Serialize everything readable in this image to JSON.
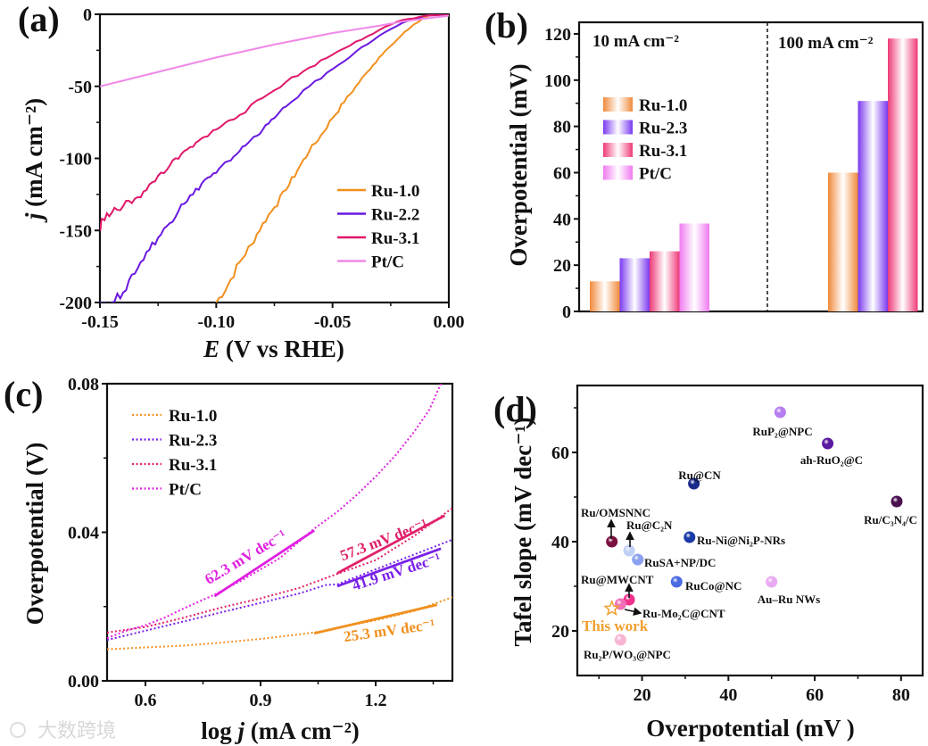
{
  "watermark": "大数跨境",
  "chart_data": [
    {
      "panel": "(a)",
      "type": "line",
      "xlabel_var": "E",
      "xlabel": " (V vs RHE)",
      "ylabel_var": "j",
      "ylabel": " (mA cm⁻²)",
      "xlim": [
        -0.15,
        0.0
      ],
      "ylim": [
        -200,
        0
      ],
      "xticks": [
        -0.15,
        -0.1,
        -0.05,
        0.0
      ],
      "xtick_labels": [
        "-0.15",
        "-0.10",
        "-0.05",
        "0.00"
      ],
      "yticks": [
        0,
        -50,
        -100,
        -150,
        -200
      ],
      "ytick_labels": [
        "0",
        "-50",
        "-100",
        "-150",
        "-200"
      ],
      "legend_position": "bottom-right",
      "series": [
        {
          "name": "Ru-1.0",
          "color": "#f0901e",
          "points": [
            [
              -0.1,
              -200
            ],
            [
              -0.095,
              -188
            ],
            [
              -0.09,
              -172
            ],
            [
              -0.085,
              -160
            ],
            [
              -0.08,
              -145
            ],
            [
              -0.075,
              -134
            ],
            [
              -0.07,
              -122
            ],
            [
              -0.065,
              -108
            ],
            [
              -0.06,
              -95
            ],
            [
              -0.055,
              -84
            ],
            [
              -0.05,
              -72
            ],
            [
              -0.045,
              -61
            ],
            [
              -0.04,
              -50
            ],
            [
              -0.035,
              -40
            ],
            [
              -0.03,
              -30
            ],
            [
              -0.025,
              -22
            ],
            [
              -0.02,
              -14
            ],
            [
              -0.015,
              -7
            ],
            [
              -0.008,
              0
            ],
            [
              0,
              0
            ]
          ]
        },
        {
          "name": "Ru-2.2",
          "color": "#6a18e0",
          "points": [
            [
              -0.15,
              -200
            ],
            [
              -0.145,
              -200
            ],
            [
              -0.14,
              -193
            ],
            [
              -0.135,
              -180
            ],
            [
              -0.13,
              -165
            ],
            [
              -0.125,
              -155
            ],
            [
              -0.12,
              -145
            ],
            [
              -0.115,
              -132
            ],
            [
              -0.11,
              -125
            ],
            [
              -0.105,
              -115
            ],
            [
              -0.1,
              -110
            ],
            [
              -0.095,
              -102
            ],
            [
              -0.09,
              -95
            ],
            [
              -0.085,
              -87
            ],
            [
              -0.08,
              -80
            ],
            [
              -0.075,
              -72
            ],
            [
              -0.07,
              -64
            ],
            [
              -0.06,
              -50
            ],
            [
              -0.05,
              -38
            ],
            [
              -0.04,
              -26
            ],
            [
              -0.03,
              -15
            ],
            [
              -0.02,
              -6
            ],
            [
              -0.01,
              -1
            ],
            [
              0,
              0
            ]
          ]
        },
        {
          "name": "Ru-3.1",
          "color": "#e0186a",
          "points": [
            [
              -0.15,
              -150
            ],
            [
              -0.149,
              -142
            ],
            [
              -0.145,
              -138
            ],
            [
              -0.14,
              -133
            ],
            [
              -0.135,
              -128
            ],
            [
              -0.13,
              -122
            ],
            [
              -0.125,
              -112
            ],
            [
              -0.12,
              -105
            ],
            [
              -0.115,
              -97
            ],
            [
              -0.11,
              -92
            ],
            [
              -0.105,
              -85
            ],
            [
              -0.1,
              -80
            ],
            [
              -0.095,
              -74
            ],
            [
              -0.09,
              -70
            ],
            [
              -0.08,
              -58
            ],
            [
              -0.07,
              -47
            ],
            [
              -0.06,
              -37
            ],
            [
              -0.05,
              -28
            ],
            [
              -0.04,
              -19
            ],
            [
              -0.03,
              -11
            ],
            [
              -0.02,
              -4
            ],
            [
              -0.01,
              -1
            ],
            [
              0,
              0
            ]
          ]
        },
        {
          "name": "Pt/C",
          "color": "#f088e8",
          "points": [
            [
              -0.15,
              -50
            ],
            [
              -0.125,
              -40
            ],
            [
              -0.1,
              -30
            ],
            [
              -0.075,
              -21
            ],
            [
              -0.05,
              -13
            ],
            [
              -0.03,
              -8
            ],
            [
              -0.02,
              -5
            ],
            [
              -0.01,
              -3
            ],
            [
              0,
              -1
            ]
          ]
        }
      ]
    },
    {
      "panel": "(b)",
      "type": "bar",
      "ylabel": "Overpotential (mV)",
      "ylim": [
        0,
        125
      ],
      "yticks": [
        0,
        20,
        40,
        60,
        80,
        100,
        120
      ],
      "ytick_labels": [
        "0",
        "20",
        "40",
        "60",
        "80",
        "100",
        "120"
      ],
      "legend_position": "upper-left",
      "categories": [
        "10 mA cm⁻²",
        "100 mA cm⁻²"
      ],
      "series": [
        {
          "name": "Ru-1.0",
          "color": "#f08a3a",
          "values": [
            13,
            60
          ]
        },
        {
          "name": "Ru-2.3",
          "color": "#7a3af0",
          "values": [
            23,
            91
          ]
        },
        {
          "name": "Ru-3.1",
          "color": "#ee3a78",
          "values": [
            26,
            118
          ]
        },
        {
          "name": "Pt/C",
          "color": "#f07af0",
          "values": [
            38,
            null
          ]
        }
      ]
    },
    {
      "panel": "(c)",
      "type": "line",
      "xlabel_pre": "log ",
      "xlabel_var": "j",
      "xlabel": " (mA cm⁻²)",
      "ylabel": "Overpotential (V)",
      "xlim": [
        0.5,
        1.4
      ],
      "ylim": [
        0,
        0.08
      ],
      "xticks": [
        0.6,
        0.9,
        1.2
      ],
      "xtick_labels": [
        "0.6",
        "0.9",
        "1.2"
      ],
      "yticks": [
        0,
        0.04,
        0.08
      ],
      "ytick_labels": [
        "0.00",
        "0.04",
        "0.08"
      ],
      "legend_position": "upper-left",
      "series": [
        {
          "name": "Ru-1.0",
          "color": "#f0901e",
          "tafel_slope": "25.3 mV dec⁻¹",
          "points": [
            [
              0.5,
              0.0085
            ],
            [
              0.6,
              0.009
            ],
            [
              0.7,
              0.0095
            ],
            [
              0.8,
              0.0103
            ],
            [
              0.9,
              0.0113
            ],
            [
              1.0,
              0.0125
            ],
            [
              1.05,
              0.0132
            ],
            [
              1.1,
              0.0143
            ],
            [
              1.2,
              0.0163
            ],
            [
              1.3,
              0.0188
            ],
            [
              1.4,
              0.0225
            ]
          ],
          "fit": [
            [
              1.04,
              0.0128
            ],
            [
              1.36,
              0.0205
            ]
          ]
        },
        {
          "name": "Ru-2.3",
          "color": "#7a20e8",
          "tafel_slope": "41.9 mV dec⁻¹",
          "points": [
            [
              0.5,
              0.011
            ],
            [
              0.6,
              0.0135
            ],
            [
              0.7,
              0.016
            ],
            [
              0.8,
              0.0185
            ],
            [
              0.9,
              0.021
            ],
            [
              1.0,
              0.0235
            ],
            [
              1.07,
              0.0258
            ],
            [
              1.1,
              0.026
            ],
            [
              1.2,
              0.03
            ],
            [
              1.3,
              0.034
            ],
            [
              1.4,
              0.038
            ]
          ],
          "fit": [
            [
              1.1,
              0.0255
            ],
            [
              1.37,
              0.0356
            ]
          ]
        },
        {
          "name": "Ru-3.1",
          "color": "#e0206a",
          "tafel_slope": "57.3 mV dec⁻¹",
          "points": [
            [
              0.5,
              0.013
            ],
            [
              0.6,
              0.0145
            ],
            [
              0.7,
              0.017
            ],
            [
              0.8,
              0.0198
            ],
            [
              0.9,
              0.0222
            ],
            [
              1.0,
              0.025
            ],
            [
              1.1,
              0.0288
            ],
            [
              1.2,
              0.0325
            ],
            [
              1.3,
              0.039
            ],
            [
              1.4,
              0.0465
            ]
          ],
          "fit": [
            [
              1.1,
              0.029
            ],
            [
              1.38,
              0.0445
            ]
          ]
        },
        {
          "name": "Pt/C",
          "color": "#e020e0",
          "tafel_slope": "62.3 mV dec⁻¹",
          "points": [
            [
              0.5,
              0.0115
            ],
            [
              0.55,
              0.0135
            ],
            [
              0.6,
              0.015
            ],
            [
              0.65,
              0.017
            ],
            [
              0.7,
              0.0195
            ],
            [
              0.78,
              0.0232
            ],
            [
              0.85,
              0.027
            ],
            [
              0.95,
              0.033
            ],
            [
              1.04,
              0.041
            ],
            [
              1.1,
              0.0455
            ],
            [
              1.15,
              0.05
            ],
            [
              1.2,
              0.055
            ],
            [
              1.25,
              0.0605
            ],
            [
              1.3,
              0.067
            ],
            [
              1.34,
              0.073
            ],
            [
              1.37,
              0.08
            ]
          ],
          "fit": [
            [
              0.78,
              0.0228
            ],
            [
              1.04,
              0.0405
            ]
          ]
        }
      ]
    },
    {
      "panel": "(d)",
      "type": "scatter",
      "xlabel": "Overpotential (mV )",
      "ylabel": "Tafel slope (mV dec⁻¹)",
      "xlim": [
        5,
        85
      ],
      "ylim": [
        10,
        75
      ],
      "xticks": [
        20,
        40,
        60,
        80
      ],
      "xtick_labels": [
        "20",
        "40",
        "60",
        "80"
      ],
      "yticks": [
        20,
        40,
        60
      ],
      "ytick_labels": [
        "20",
        "40",
        "60"
      ],
      "points": [
        {
          "label": "RuP₂@NPC",
          "x": 52,
          "y": 69,
          "color": "#b47ef0"
        },
        {
          "label": "ah-RuO₂@C",
          "x": 63,
          "y": 62,
          "color": "#5a1aa0"
        },
        {
          "label": "Ru@CN",
          "x": 32,
          "y": 53,
          "color": "#1a2a8a"
        },
        {
          "label": "Ru/C₃N₄/C",
          "x": 79,
          "y": 49,
          "color": "#4a1050"
        },
        {
          "label": "Ru/OMSNNC",
          "x": 13,
          "y": 40,
          "color": "#7a1040"
        },
        {
          "label": "Ru@C₂N",
          "x": 17,
          "y": 38,
          "color": "#c0d0f4"
        },
        {
          "label": "RuSA+NP/DC",
          "x": 19,
          "y": 36,
          "color": "#8aa0f0"
        },
        {
          "label": "Ru-Ni@Ni₂P-NRs",
          "x": 31,
          "y": 41,
          "color": "#1a3aa8"
        },
        {
          "label": "RuCo@NC",
          "x": 28,
          "y": 31,
          "color": "#4a6ae0"
        },
        {
          "label": "Au–Ru NWs",
          "x": 50,
          "y": 31,
          "color": "#eaaaf2"
        },
        {
          "label": "Ru@MWCNT",
          "x": 17,
          "y": 27,
          "color": "#f0308a"
        },
        {
          "label": "Ru-Mo₂C@CNT",
          "x": 15,
          "y": 26,
          "color": "#f070b8"
        },
        {
          "label": "This work",
          "x": 13,
          "y": 25,
          "color": "#f0a030",
          "marker": "star"
        },
        {
          "label": "Ru₂P/WO₃@NPC",
          "x": 15,
          "y": 18,
          "color": "#f8b4d4"
        }
      ]
    }
  ]
}
